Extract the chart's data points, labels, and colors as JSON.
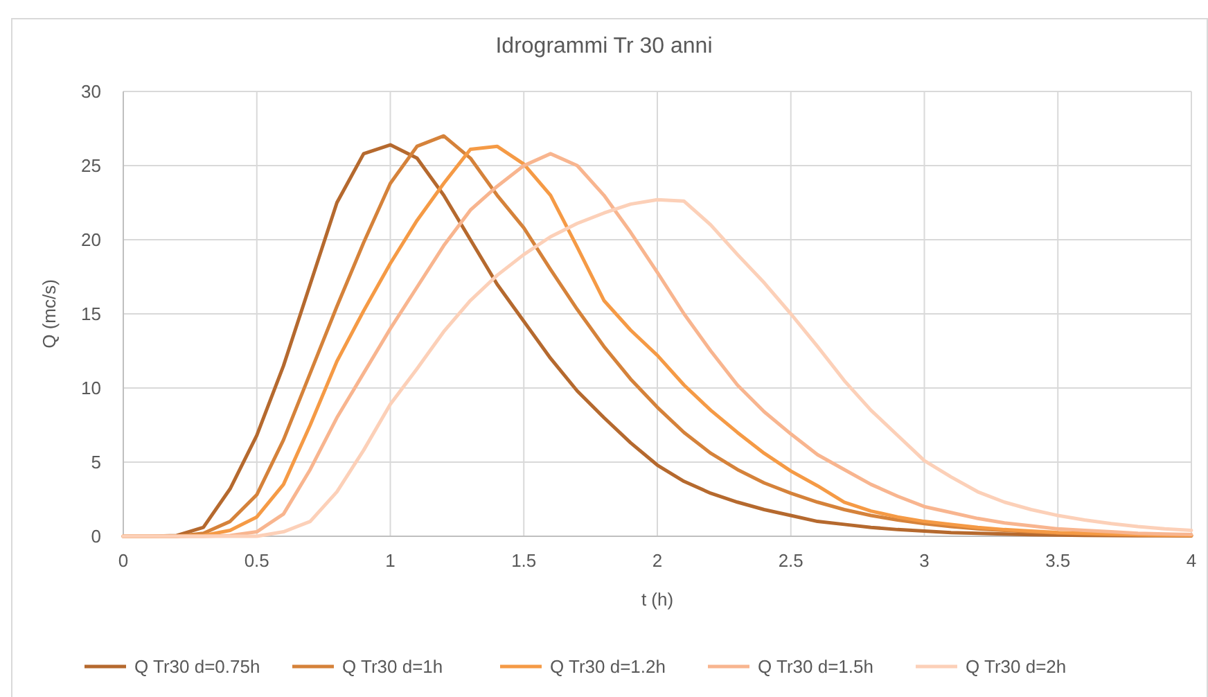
{
  "chart_data": {
    "type": "line",
    "title": "Idrogrammi Tr 30 anni",
    "xlabel": "t (h)",
    "ylabel": "Q (mc/s)",
    "x": [
      0,
      0.1,
      0.2,
      0.3,
      0.4,
      0.5,
      0.6,
      0.7,
      0.8,
      0.9,
      1,
      1.1,
      1.2,
      1.3,
      1.4,
      1.5,
      1.6,
      1.7,
      1.8,
      1.9,
      2,
      2.1,
      2.2,
      2.3,
      2.4,
      2.5,
      2.6,
      2.7,
      2.8,
      2.9,
      3,
      3.1,
      3.2,
      3.3,
      3.4,
      3.5,
      3.6,
      3.7,
      3.8,
      3.9,
      4
    ],
    "series": [
      {
        "name": "Q Tr30 d=0.75h",
        "color": "#b5692e",
        "values": [
          0,
          0,
          0.05,
          0.6,
          3.2,
          6.8,
          11.5,
          17,
          22.5,
          25.8,
          26.4,
          25.5,
          23,
          20,
          17,
          14.5,
          12,
          9.8,
          8,
          6.3,
          4.8,
          3.7,
          2.9,
          2.3,
          1.8,
          1.4,
          1,
          0.8,
          0.6,
          0.45,
          0.35,
          0.25,
          0.2,
          0.15,
          0.1,
          0.08,
          0.06,
          0.05,
          0.04,
          0.03,
          0.02
        ]
      },
      {
        "name": "Q Tr30 d=1h",
        "color": "#d5823a",
        "values": [
          0,
          0,
          0,
          0.2,
          1,
          2.8,
          6.5,
          11,
          15.5,
          19.8,
          23.8,
          26.3,
          27,
          25.5,
          23,
          20.8,
          18,
          15.3,
          12.8,
          10.6,
          8.7,
          7,
          5.6,
          4.5,
          3.6,
          2.9,
          2.3,
          1.8,
          1.4,
          1.1,
          0.85,
          0.65,
          0.5,
          0.4,
          0.3,
          0.22,
          0.16,
          0.12,
          0.09,
          0.06,
          0.05
        ]
      },
      {
        "name": "Q Tr30 d=1.2h",
        "color": "#f59a45",
        "values": [
          0,
          0,
          0,
          0.05,
          0.4,
          1.3,
          3.5,
          7.5,
          11.8,
          15.2,
          18.4,
          21.3,
          23.8,
          26.1,
          26.3,
          25.1,
          23,
          19.5,
          15.9,
          13.9,
          12.2,
          10.2,
          8.5,
          7,
          5.6,
          4.4,
          3.4,
          2.3,
          1.7,
          1.3,
          1,
          0.8,
          0.6,
          0.45,
          0.35,
          0.25,
          0.2,
          0.15,
          0.1,
          0.08,
          0.06
        ]
      },
      {
        "name": "Q Tr30 d=1.5h",
        "color": "#f8b58f",
        "values": [
          0,
          0,
          0,
          0,
          0.05,
          0.3,
          1.5,
          4.5,
          8,
          11,
          14,
          16.8,
          19.6,
          22,
          23.6,
          25,
          25.8,
          25,
          23,
          20.5,
          17.8,
          15,
          12.5,
          10.2,
          8.4,
          6.9,
          5.5,
          4.5,
          3.5,
          2.7,
          2,
          1.6,
          1.2,
          0.9,
          0.7,
          0.5,
          0.4,
          0.3,
          0.2,
          0.15,
          0.12
        ]
      },
      {
        "name": "Q Tr30 d=2h",
        "color": "#fcd0b8",
        "values": [
          0,
          0,
          0,
          0,
          0,
          0,
          0.3,
          1,
          3,
          5.8,
          8.9,
          11.3,
          13.8,
          15.9,
          17.6,
          19,
          20.2,
          21.1,
          21.8,
          22.4,
          22.7,
          22.6,
          21,
          19,
          17.1,
          15,
          12.8,
          10.5,
          8.5,
          6.8,
          5.1,
          4,
          3,
          2.3,
          1.8,
          1.4,
          1.1,
          0.85,
          0.65,
          0.5,
          0.4
        ]
      }
    ],
    "xlim": [
      0,
      4
    ],
    "xticks": [
      0,
      0.5,
      1,
      1.5,
      2,
      2.5,
      3,
      3.5,
      4
    ],
    "ylim": [
      0,
      30
    ],
    "yticks": [
      0,
      5,
      10,
      15,
      20,
      25,
      30
    ],
    "grid": true,
    "legend": "bottom",
    "marker": "none",
    "line_style": "solid"
  }
}
